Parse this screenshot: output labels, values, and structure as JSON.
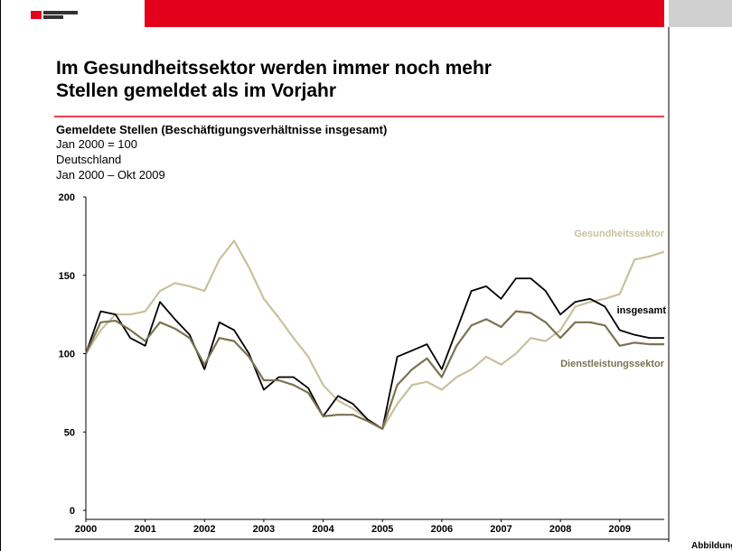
{
  "chart_data": {
    "type": "line",
    "title": [
      "Im Gesundheitssektor werden immer noch mehr",
      "Stellen gemeldet als im Vorjahr"
    ],
    "subtitle": "Gemeldete Stellen (Beschäftigungsverhältnisse insgesamt)",
    "notes": [
      "Jan 2000 = 100",
      "Deutschland",
      "Jan 2000 – Okt 2009"
    ],
    "footer": "Abbildung",
    "x": [
      2000,
      2000.25,
      2000.5,
      2000.75,
      2001,
      2001.25,
      2001.5,
      2001.75,
      2002,
      2002.25,
      2002.5,
      2002.75,
      2003,
      2003.25,
      2003.5,
      2003.75,
      2004,
      2004.25,
      2004.5,
      2004.75,
      2005,
      2005.25,
      2005.5,
      2005.75,
      2006,
      2006.25,
      2006.5,
      2006.75,
      2007,
      2007.25,
      2007.5,
      2007.75,
      2008,
      2008.25,
      2008.5,
      2008.75,
      2009,
      2009.25,
      2009.5,
      2009.75
    ],
    "series": [
      {
        "name": "Gesundheitssektor",
        "color": "#c9c19b",
        "values": [
          100,
          115,
          125,
          125,
          127,
          140,
          145,
          143,
          140,
          160,
          172,
          155,
          135,
          123,
          110,
          98,
          80,
          70,
          65,
          58,
          52,
          68,
          80,
          82,
          77,
          85,
          90,
          98,
          93,
          100,
          110,
          108,
          115,
          130,
          133,
          135,
          138,
          160,
          162,
          165
        ]
      },
      {
        "name": "insgesamt",
        "color": "#000000",
        "values": [
          100,
          127,
          125,
          110,
          105,
          133,
          122,
          112,
          90,
          120,
          115,
          100,
          77,
          85,
          85,
          78,
          60,
          73,
          68,
          58,
          52,
          98,
          102,
          106,
          90,
          115,
          140,
          143,
          135,
          148,
          148,
          140,
          125,
          133,
          135,
          130,
          115,
          112,
          110,
          110
        ]
      },
      {
        "name": "Dienstleistungssektor",
        "color": "#7a7350",
        "values": [
          100,
          120,
          121,
          115,
          108,
          120,
          116,
          110,
          93,
          110,
          108,
          98,
          83,
          83,
          80,
          75,
          60,
          61,
          61,
          57,
          52,
          80,
          90,
          97,
          85,
          105,
          118,
          122,
          117,
          127,
          126,
          120,
          110,
          120,
          120,
          118,
          105,
          107,
          106,
          106
        ]
      }
    ],
    "xlim": [
      2000,
      2009.75
    ],
    "xticks": [
      2000,
      2001,
      2002,
      2003,
      2004,
      2005,
      2006,
      2007,
      2008,
      2009
    ],
    "ylim": [
      0,
      200
    ],
    "yticks": [
      0,
      50,
      100,
      150,
      200
    ]
  }
}
